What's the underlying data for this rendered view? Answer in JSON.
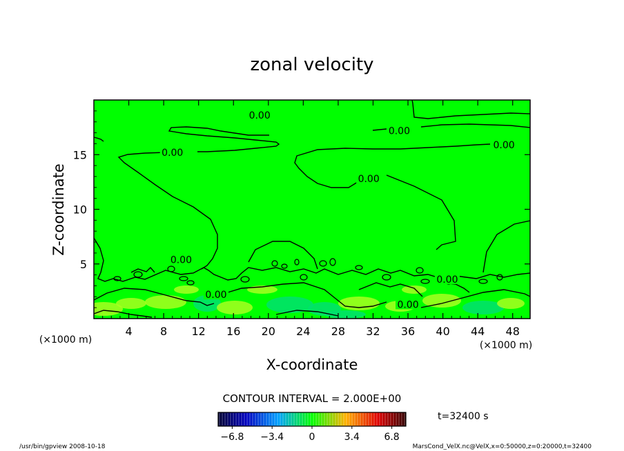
{
  "chart_data": {
    "type": "contour",
    "title": "zonal velocity",
    "xlabel": "X-coordinate",
    "ylabel": "Z-coordinate",
    "x_unit_left": "(×1000 m)",
    "x_unit_right": "(×1000 m)",
    "xlim": [
      0,
      50
    ],
    "ylim": [
      0,
      20
    ],
    "x_ticks": [
      4,
      8,
      12,
      16,
      20,
      24,
      28,
      32,
      36,
      40,
      44,
      48
    ],
    "x_tick_labels": [
      "4",
      "8",
      "12",
      "16",
      "20",
      "24",
      "28",
      "32",
      "36",
      "40",
      "44",
      "48"
    ],
    "y_ticks": [
      5,
      10,
      15
    ],
    "y_tick_labels": [
      "5",
      "10",
      "15"
    ],
    "contour_interval_text": "CONTOUR INTERVAL = 2.000E+00",
    "contour_labels": [
      {
        "text": "0.00",
        "x": 19,
        "z": 18.6
      },
      {
        "text": "0.00",
        "x": 35,
        "z": 17.2
      },
      {
        "text": "0.00",
        "x": 47,
        "z": 15.9
      },
      {
        "text": "0.00",
        "x": 9,
        "z": 15.2
      },
      {
        "text": "0.00",
        "x": 31.5,
        "z": 12.8
      },
      {
        "text": "0.00",
        "x": 10,
        "z": 5.4
      },
      {
        "text": "0.00",
        "x": 14,
        "z": 2.2
      },
      {
        "text": "0.00",
        "x": 40.5,
        "z": 3.6
      },
      {
        "text": "0.00",
        "x": 36,
        "z": 1.3
      }
    ],
    "colorbar": {
      "min": -8,
      "max": 8,
      "ticks": [
        -6.8,
        -3.4,
        0,
        3.4,
        6.8
      ],
      "tick_labels": [
        "−6.8",
        "−3.4",
        "0",
        "3.4",
        "6.8"
      ]
    },
    "colors": {
      "field_background": "#00ff00",
      "field_high": "#a8ff20",
      "field_low": "#00e070",
      "contour": "#000000"
    }
  },
  "time_label": "t=32400 s",
  "footer": {
    "left": "/usr/bin/gpview  2008-10-18",
    "right": "MarsCond_VelX.nc@VelX,x=0:50000,z=0:20000,t=32400"
  }
}
